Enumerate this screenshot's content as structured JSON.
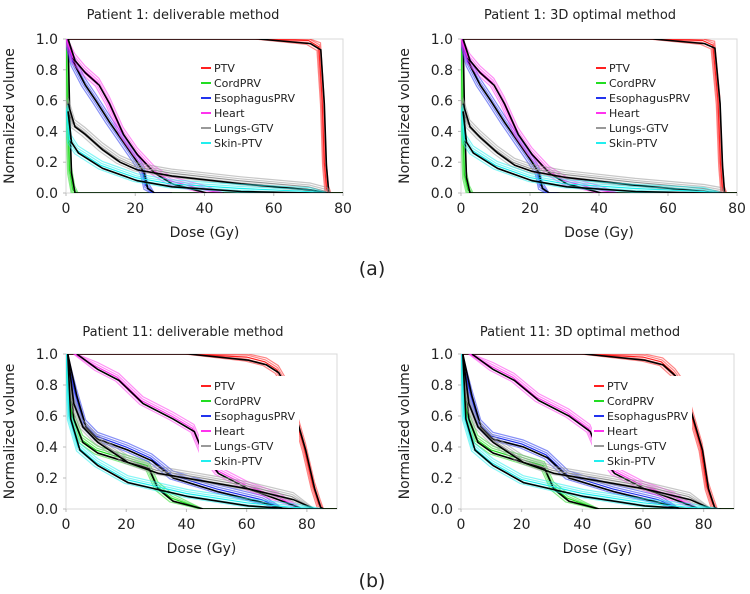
{
  "panel_labels": [
    "(a)",
    "(b)"
  ],
  "colors": {
    "PTV": "#ff2020",
    "CordPRV": "#22dd22",
    "EsophagusPRV": "#2233ee",
    "Heart": "#ff33ee",
    "Lungs-GTV": "#999999",
    "Skin-PTV": "#22eeee",
    "reference": "#000000"
  },
  "chart_data": [
    {
      "type": "line",
      "title": "Patient 1: deliverable method",
      "xlabel": "Dose (Gy)",
      "ylabel": "Normalized volume",
      "xlim": [
        0,
        80
      ],
      "ylim": [
        0,
        1.0
      ],
      "xticks": [
        "0",
        "20",
        "40",
        "60",
        "80"
      ],
      "yticks": [
        "0.0",
        "0.2",
        "0.4",
        "0.6",
        "0.8",
        "1.0"
      ],
      "legend": [
        "PTV",
        "CordPRV",
        "EsophagusPRV",
        "Heart",
        "Lungs-GTV",
        "Skin-PTV"
      ],
      "legend_position": "top-center",
      "series": [
        {
          "name": "PTV",
          "x": [
            0,
            55,
            70,
            73,
            74,
            74.6,
            75.3,
            76,
            80
          ],
          "y": [
            1,
            1,
            0.99,
            0.95,
            0.6,
            0.2,
            0.02,
            0,
            0
          ]
        },
        {
          "name": "CordPRV",
          "x": [
            0,
            0.5,
            1,
            2,
            3,
            80
          ],
          "y": [
            1,
            0.5,
            0.15,
            0.02,
            0,
            0
          ]
        },
        {
          "name": "EsophagusPRV",
          "x": [
            0,
            2,
            5,
            8,
            12,
            16,
            20,
            22,
            23,
            25,
            30
          ],
          "y": [
            1,
            0.85,
            0.72,
            0.62,
            0.48,
            0.35,
            0.22,
            0.15,
            0.05,
            0,
            0
          ]
        },
        {
          "name": "Heart",
          "x": [
            0,
            2,
            5,
            9,
            12,
            16,
            20,
            25,
            30,
            40,
            45
          ],
          "y": [
            1,
            0.88,
            0.8,
            0.72,
            0.6,
            0.4,
            0.27,
            0.15,
            0.08,
            0.02,
            0
          ]
        },
        {
          "name": "Lungs-GTV",
          "x": [
            0,
            2,
            5,
            10,
            15,
            20,
            30,
            50,
            70,
            75,
            76
          ],
          "y": [
            0.6,
            0.45,
            0.4,
            0.3,
            0.22,
            0.17,
            0.13,
            0.08,
            0.04,
            0.01,
            0
          ]
        },
        {
          "name": "Skin-PTV",
          "x": [
            0,
            1,
            3,
            10,
            20,
            30,
            50,
            70,
            75
          ],
          "y": [
            0.55,
            0.35,
            0.28,
            0.18,
            0.1,
            0.06,
            0.03,
            0.01,
            0
          ]
        }
      ]
    },
    {
      "type": "line",
      "title": "Patient 1: 3D optimal method",
      "xlabel": "Dose (Gy)",
      "ylabel": "Normalized volume",
      "xlim": [
        0,
        80
      ],
      "ylim": [
        0,
        1.0
      ],
      "xticks": [
        "0",
        "20",
        "40",
        "60",
        "80"
      ],
      "yticks": [
        "0.0",
        "0.2",
        "0.4",
        "0.6",
        "0.8",
        "1.0"
      ],
      "legend": [
        "PTV",
        "CordPRV",
        "EsophagusPRV",
        "Heart",
        "Lungs-GTV",
        "Skin-PTV"
      ],
      "legend_position": "top-center",
      "series": [
        {
          "name": "PTV",
          "x": [
            0,
            55,
            70,
            73,
            74.5,
            75.2,
            75.8,
            76.5,
            80
          ],
          "y": [
            1,
            1,
            0.99,
            0.96,
            0.6,
            0.2,
            0.02,
            0,
            0
          ]
        },
        {
          "name": "CordPRV",
          "x": [
            0,
            0.5,
            1,
            2,
            3,
            80
          ],
          "y": [
            1,
            0.45,
            0.12,
            0.02,
            0,
            0
          ]
        },
        {
          "name": "EsophagusPRV",
          "x": [
            0,
            2,
            5,
            8,
            12,
            16,
            20,
            22,
            23,
            25,
            28
          ],
          "y": [
            1,
            0.85,
            0.72,
            0.62,
            0.48,
            0.35,
            0.22,
            0.15,
            0.05,
            0,
            0
          ]
        },
        {
          "name": "Heart",
          "x": [
            0,
            2,
            5,
            9,
            12,
            16,
            20,
            25,
            30,
            40,
            45
          ],
          "y": [
            1,
            0.88,
            0.8,
            0.72,
            0.6,
            0.4,
            0.27,
            0.15,
            0.08,
            0.02,
            0
          ]
        },
        {
          "name": "Lungs-GTV",
          "x": [
            0,
            2,
            5,
            10,
            15,
            20,
            30,
            50,
            70,
            75,
            76
          ],
          "y": [
            0.6,
            0.45,
            0.38,
            0.28,
            0.2,
            0.16,
            0.12,
            0.07,
            0.03,
            0.01,
            0
          ]
        },
        {
          "name": "Skin-PTV",
          "x": [
            0,
            1,
            3,
            10,
            20,
            30,
            50,
            70,
            75
          ],
          "y": [
            0.55,
            0.35,
            0.28,
            0.18,
            0.1,
            0.06,
            0.03,
            0.01,
            0
          ]
        }
      ]
    },
    {
      "type": "line",
      "title": "Patient 11: deliverable method",
      "xlabel": "Dose (Gy)",
      "ylabel": "Normalized volume",
      "xlim": [
        0,
        90
      ],
      "ylim": [
        0,
        1.0
      ],
      "xticks": [
        "0",
        "20",
        "40",
        "60",
        "80"
      ],
      "yticks": [
        "0.0",
        "0.2",
        "0.4",
        "0.6",
        "0.8",
        "1.0"
      ],
      "legend": [
        "PTV",
        "CordPRV",
        "EsophagusPRV",
        "Heart",
        "Lungs-GTV",
        "Skin-PTV"
      ],
      "legend_position": "center",
      "series": [
        {
          "name": "PTV",
          "x": [
            0,
            40,
            60,
            66,
            70,
            73,
            76,
            79,
            82,
            84,
            85,
            90
          ],
          "y": [
            1,
            1,
            0.98,
            0.95,
            0.9,
            0.8,
            0.6,
            0.4,
            0.15,
            0.03,
            0,
            0
          ]
        },
        {
          "name": "CordPRV",
          "x": [
            0,
            2,
            5,
            10,
            20,
            27,
            30,
            35,
            45,
            90
          ],
          "y": [
            1,
            0.6,
            0.45,
            0.38,
            0.32,
            0.28,
            0.15,
            0.07,
            0,
            0
          ]
        },
        {
          "name": "EsophagusPRV",
          "x": [
            0,
            3,
            6,
            10,
            20,
            28,
            35,
            50,
            65,
            72
          ],
          "y": [
            1,
            0.75,
            0.55,
            0.47,
            0.4,
            0.33,
            0.22,
            0.13,
            0.06,
            0
          ]
        },
        {
          "name": "Heart",
          "x": [
            3,
            10,
            17,
            25,
            35,
            42,
            45,
            50,
            60,
            70,
            78
          ],
          "y": [
            1,
            0.92,
            0.85,
            0.7,
            0.6,
            0.52,
            0.38,
            0.25,
            0.15,
            0.08,
            0
          ]
        },
        {
          "name": "Lungs-GTV",
          "x": [
            0,
            2,
            5,
            10,
            20,
            30,
            45,
            60,
            75,
            82
          ],
          "y": [
            1,
            0.7,
            0.55,
            0.45,
            0.32,
            0.25,
            0.2,
            0.15,
            0.08,
            0
          ]
        },
        {
          "name": "Skin-PTV",
          "x": [
            0,
            1,
            4,
            10,
            20,
            40,
            60,
            75,
            85
          ],
          "y": [
            1,
            0.6,
            0.4,
            0.3,
            0.19,
            0.1,
            0.04,
            0.01,
            0
          ]
        }
      ]
    },
    {
      "type": "line",
      "title": "Patient 11: 3D optimal method",
      "xlabel": "Dose (Gy)",
      "ylabel": "Normalized volume",
      "xlim": [
        0,
        90
      ],
      "ylim": [
        0,
        1.0
      ],
      "xticks": [
        "0",
        "20",
        "40",
        "60",
        "80"
      ],
      "yticks": [
        "0.0",
        "0.2",
        "0.4",
        "0.6",
        "0.8",
        "1.0"
      ],
      "legend": [
        "PTV",
        "CordPRV",
        "EsophagusPRV",
        "Heart",
        "Lungs-GTV",
        "Skin-PTV"
      ],
      "legend_position": "center",
      "series": [
        {
          "name": "PTV",
          "x": [
            0,
            40,
            60,
            66,
            70,
            73,
            76,
            79,
            81,
            83,
            84,
            90
          ],
          "y": [
            1,
            1,
            0.98,
            0.95,
            0.88,
            0.8,
            0.6,
            0.4,
            0.15,
            0.03,
            0,
            0
          ]
        },
        {
          "name": "CordPRV",
          "x": [
            0,
            2,
            5,
            10,
            20,
            27,
            30,
            35,
            45,
            90
          ],
          "y": [
            1,
            0.6,
            0.45,
            0.38,
            0.32,
            0.28,
            0.15,
            0.07,
            0,
            0
          ]
        },
        {
          "name": "EsophagusPRV",
          "x": [
            0,
            3,
            6,
            10,
            20,
            28,
            35,
            50,
            65,
            72
          ],
          "y": [
            1,
            0.75,
            0.55,
            0.47,
            0.42,
            0.35,
            0.22,
            0.13,
            0.06,
            0
          ]
        },
        {
          "name": "Heart",
          "x": [
            3,
            10,
            17,
            25,
            35,
            42,
            45,
            50,
            60,
            70,
            78
          ],
          "y": [
            1,
            0.92,
            0.85,
            0.72,
            0.62,
            0.52,
            0.38,
            0.25,
            0.15,
            0.08,
            0
          ]
        },
        {
          "name": "Lungs-GTV",
          "x": [
            0,
            2,
            5,
            10,
            20,
            30,
            45,
            60,
            75,
            82
          ],
          "y": [
            1,
            0.7,
            0.55,
            0.45,
            0.32,
            0.25,
            0.2,
            0.15,
            0.08,
            0
          ]
        },
        {
          "name": "Skin-PTV",
          "x": [
            0,
            1,
            4,
            10,
            20,
            40,
            60,
            75,
            85
          ],
          "y": [
            1,
            0.6,
            0.4,
            0.3,
            0.19,
            0.1,
            0.04,
            0.01,
            0
          ]
        }
      ]
    }
  ]
}
